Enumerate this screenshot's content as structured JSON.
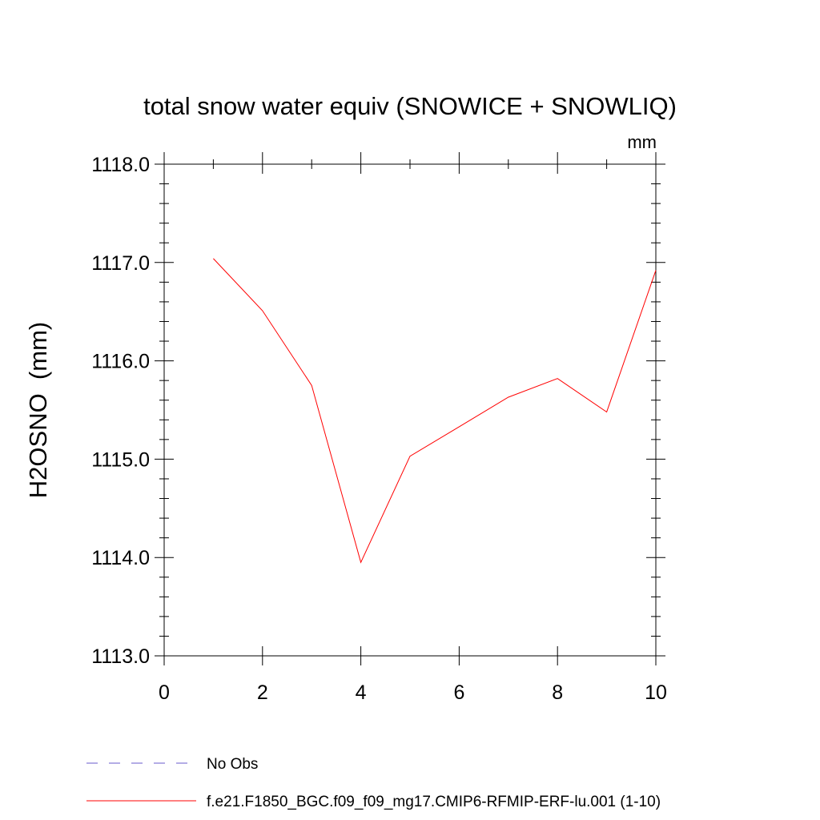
{
  "chart_data": {
    "type": "line",
    "title": "total snow water equiv (SNOWICE + SNOWLIQ)",
    "units": "mm",
    "ylabel": "H2OSNO  (mm)",
    "xlabel": "",
    "xlim": [
      0,
      10
    ],
    "ylim": [
      1113.0,
      1118.0
    ],
    "x_ticks": [
      "0",
      "2",
      "4",
      "6",
      "8",
      "10"
    ],
    "y_ticks": [
      "1113.0",
      "1114.0",
      "1115.0",
      "1116.0",
      "1117.0",
      "1118.0"
    ],
    "grid": false,
    "legend_position": "bottom",
    "series": [
      {
        "name": "No Obs",
        "color": "#6a5acd",
        "dash": "dashed",
        "x": [],
        "y": []
      },
      {
        "name": "f.e21.F1850_BGC.f09_f09_mg17.CMIP6-RFMIP-ERF-lu.001 (1-10)",
        "color": "#ff0000",
        "dash": "solid",
        "x": [
          1,
          2,
          3,
          4,
          5,
          6,
          7,
          8,
          9,
          10
        ],
        "y": [
          1117.04,
          1116.51,
          1115.75,
          1113.95,
          1115.03,
          1115.33,
          1115.63,
          1115.82,
          1115.48,
          1116.92
        ]
      }
    ]
  }
}
